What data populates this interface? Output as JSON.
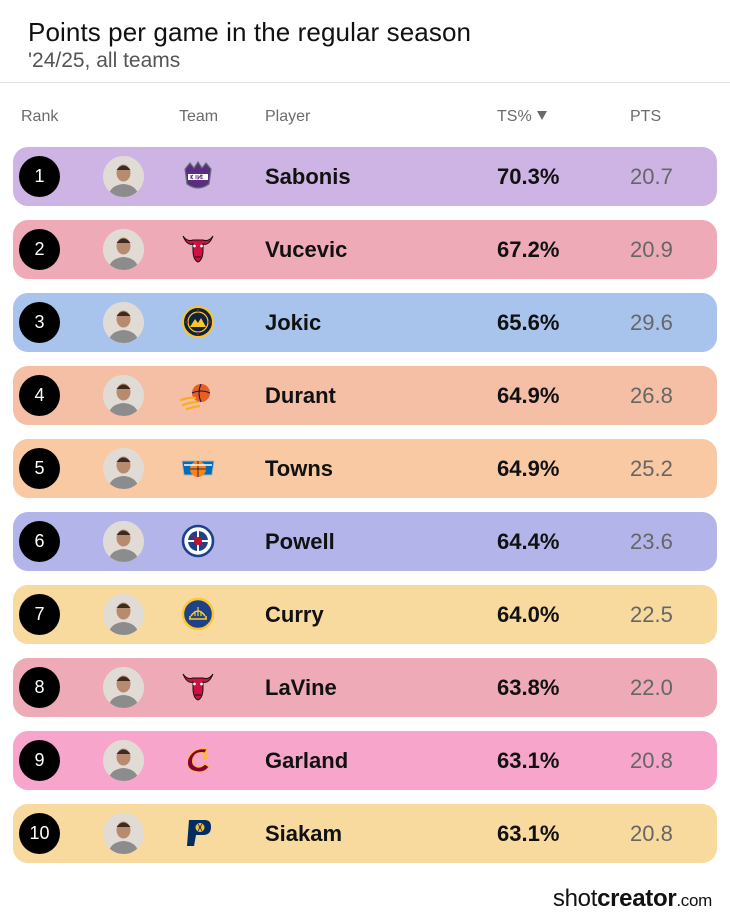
{
  "header": {
    "title": "Points per game in the regular season",
    "subtitle": "'24/25, all teams"
  },
  "columns": {
    "rank": "Rank",
    "team": "Team",
    "player": "Player",
    "ts": "TS%",
    "pts": "PTS"
  },
  "brand": {
    "shot": "shot",
    "creator": "creator",
    "com": ".com"
  },
  "chart_data": {
    "type": "table",
    "title": "Points per game in the regular season",
    "subtitle": "'24/25, all teams",
    "columns": [
      "Rank",
      "Team",
      "Player",
      "TS%",
      "PTS"
    ],
    "sorted_by": "TS%",
    "rows": [
      {
        "rank": "1",
        "team_icon": "kings-logo-icon",
        "player": "Sabonis",
        "ts": "70.3%",
        "pts": "20.7",
        "color": "#cdb4e4"
      },
      {
        "rank": "2",
        "team_icon": "bulls-logo-icon",
        "player": "Vucevic",
        "ts": "67.2%",
        "pts": "20.9",
        "color": "#eeaab7"
      },
      {
        "rank": "3",
        "team_icon": "nuggets-logo-icon",
        "player": "Jokic",
        "ts": "65.6%",
        "pts": "29.6",
        "color": "#a9c4ec"
      },
      {
        "rank": "4",
        "team_icon": "suns-logo-icon",
        "player": "Durant",
        "ts": "64.9%",
        "pts": "26.8",
        "color": "#f4bfa5"
      },
      {
        "rank": "5",
        "team_icon": "knicks-logo-icon",
        "player": "Towns",
        "ts": "64.9%",
        "pts": "25.2",
        "color": "#f8c9a2"
      },
      {
        "rank": "6",
        "team_icon": "clippers-logo-icon",
        "player": "Powell",
        "ts": "64.4%",
        "pts": "23.6",
        "color": "#b3b5ea"
      },
      {
        "rank": "7",
        "team_icon": "warriors-logo-icon",
        "player": "Curry",
        "ts": "64.0%",
        "pts": "22.5",
        "color": "#f8da9f"
      },
      {
        "rank": "8",
        "team_icon": "bulls-logo-icon",
        "player": "LaVine",
        "ts": "63.8%",
        "pts": "22.0",
        "color": "#eeaab7"
      },
      {
        "rank": "9",
        "team_icon": "cavaliers-logo-icon",
        "player": "Garland",
        "ts": "63.1%",
        "pts": "20.8",
        "color": "#f7a5cb"
      },
      {
        "rank": "10",
        "team_icon": "pacers-logo-icon",
        "player": "Siakam",
        "ts": "63.1%",
        "pts": "20.8",
        "color": "#f8da9f"
      }
    ]
  }
}
